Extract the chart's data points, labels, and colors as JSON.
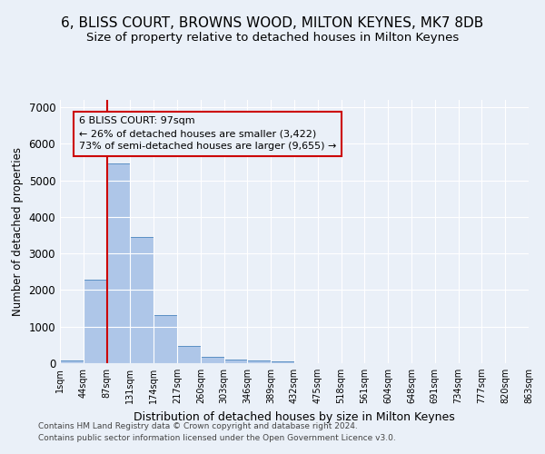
{
  "title": "6, BLISS COURT, BROWNS WOOD, MILTON KEYNES, MK7 8DB",
  "subtitle": "Size of property relative to detached houses in Milton Keynes",
  "xlabel": "Distribution of detached houses by size in Milton Keynes",
  "ylabel": "Number of detached properties",
  "footnote1": "Contains HM Land Registry data © Crown copyright and database right 2024.",
  "footnote2": "Contains public sector information licensed under the Open Government Licence v3.0.",
  "bar_values": [
    75,
    2280,
    5470,
    3450,
    1310,
    470,
    165,
    95,
    65,
    45,
    0,
    0,
    0,
    0,
    0,
    0,
    0,
    0,
    0,
    0
  ],
  "bar_labels": [
    "1sqm",
    "44sqm",
    "87sqm",
    "131sqm",
    "174sqm",
    "217sqm",
    "260sqm",
    "303sqm",
    "346sqm",
    "389sqm",
    "432sqm",
    "475sqm",
    "518sqm",
    "561sqm",
    "604sqm",
    "648sqm",
    "691sqm",
    "734sqm",
    "777sqm",
    "820sqm",
    "863sqm"
  ],
  "bar_color": "#aec6e8",
  "bar_edge_color": "#5a8fc4",
  "vline_color": "#cc0000",
  "annotation_text": "6 BLISS COURT: 97sqm\n← 26% of detached houses are smaller (3,422)\n73% of semi-detached houses are larger (9,655) →",
  "annotation_box_edgecolor": "#cc0000",
  "ylim": [
    0,
    7200
  ],
  "yticks": [
    0,
    1000,
    2000,
    3000,
    4000,
    5000,
    6000,
    7000
  ],
  "bg_color": "#eaf0f8",
  "grid_color": "#ffffff",
  "title_fontsize": 11,
  "subtitle_fontsize": 9.5
}
